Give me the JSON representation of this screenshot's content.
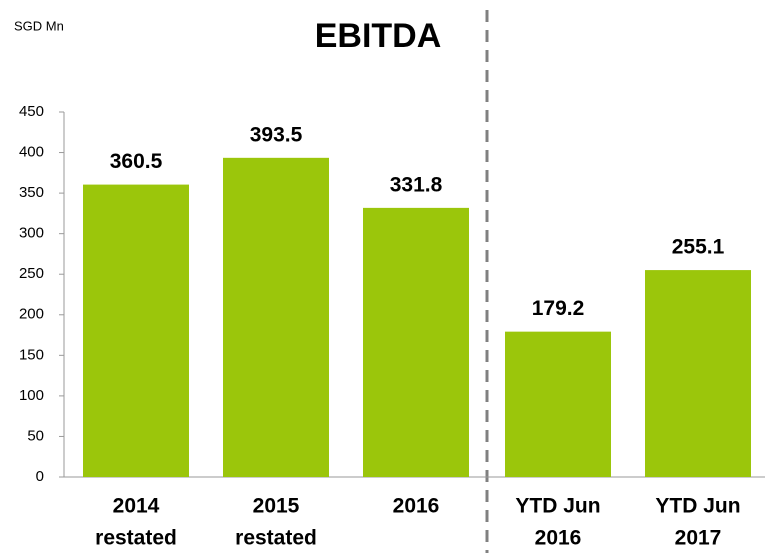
{
  "chart_data": {
    "type": "bar",
    "title": "EBITDA",
    "y_label": "SGD Mn",
    "categories": [
      [
        "2014",
        "restated"
      ],
      [
        "2015",
        "restated"
      ],
      [
        "2016"
      ],
      [
        "YTD Jun",
        "2016"
      ],
      [
        "YTD Jun",
        "2017"
      ]
    ],
    "values": [
      360.5,
      393.5,
      331.8,
      179.2,
      255.1
    ],
    "color": "#9bc60b",
    "ylim": [
      0,
      450
    ],
    "yticks": [
      0,
      50,
      100,
      150,
      200,
      250,
      300,
      350,
      400,
      450
    ],
    "grid": false
  }
}
